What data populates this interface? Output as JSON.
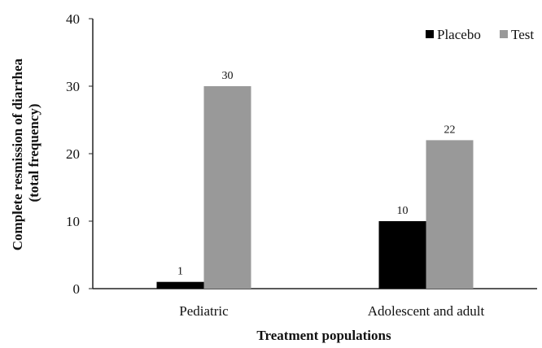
{
  "chart_data": {
    "type": "bar",
    "title": "",
    "xlabel": "Treatment populations",
    "ylabel": [
      "Complete resmission of diarrhea",
      "(total frequency)"
    ],
    "categories": [
      "Pediatric",
      "Adolescent and adult"
    ],
    "series": [
      {
        "name": "Placebo",
        "values": [
          1,
          10
        ],
        "color": "#000000"
      },
      {
        "name": "Test",
        "values": [
          30,
          22
        ],
        "color": "#999999"
      }
    ],
    "ylim": [
      0,
      40
    ],
    "yticks": [
      0,
      10,
      20,
      30,
      40
    ],
    "grid": false,
    "legend_position": "top-right",
    "data_labels": true
  }
}
